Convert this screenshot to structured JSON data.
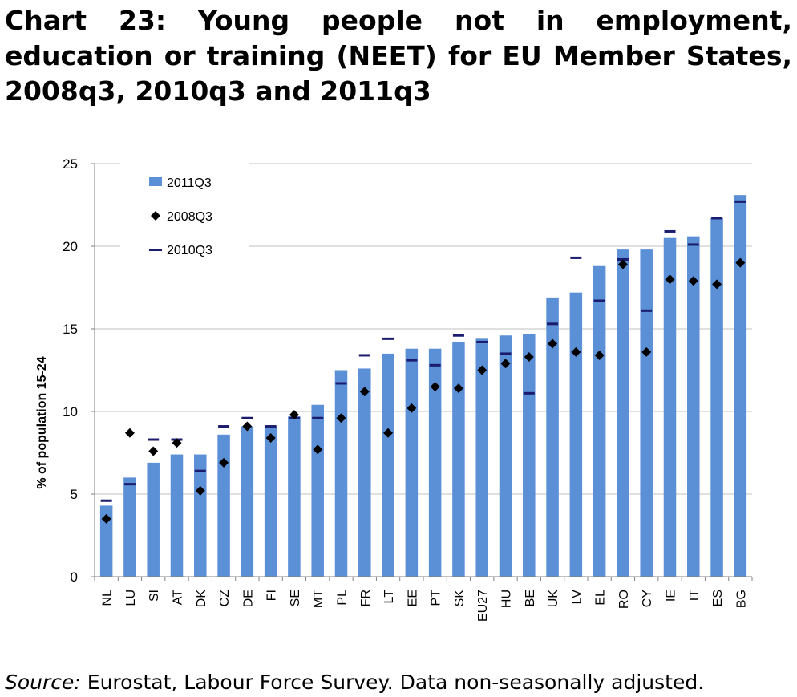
{
  "title": "Chart 23: Young people not in employment, education or training (NEET) for EU Member States, 2008q3, 2010q3 and 2011q3",
  "source": {
    "label": "Source:",
    "text": " Eurostat, Labour Force Survey. Data non-seasonally adjusted."
  },
  "colors": {
    "bar": "#5b8fd6",
    "diamond": "#000000",
    "dash": "#1c1c6e",
    "grid": "#c0c0c0"
  },
  "chart_data": {
    "type": "bar",
    "ylabel": "% of population 15-24",
    "ylim": [
      0,
      25
    ],
    "yticks": [
      0,
      5,
      10,
      15,
      20,
      25
    ],
    "grid": true,
    "legend_position": "top-left",
    "categories": [
      "NL",
      "LU",
      "SI",
      "AT",
      "DK",
      "CZ",
      "DE",
      "FI",
      "SE",
      "MT",
      "PL",
      "FR",
      "LT",
      "EE",
      "PT",
      "SK",
      "EU27",
      "HU",
      "BE",
      "UK",
      "LV",
      "EL",
      "RO",
      "CY",
      "IE",
      "IT",
      "ES",
      "BG"
    ],
    "series": [
      {
        "name": "2011Q3",
        "type": "bar",
        "values": [
          4.3,
          6.0,
          6.9,
          7.4,
          7.4,
          8.6,
          9.1,
          9.1,
          9.7,
          10.4,
          12.5,
          12.6,
          13.5,
          13.8,
          13.8,
          14.2,
          14.4,
          14.6,
          14.7,
          16.9,
          17.2,
          18.8,
          19.8,
          19.8,
          20.5,
          20.6,
          21.7,
          23.1
        ]
      },
      {
        "name": "2008Q3",
        "type": "marker-diamond",
        "values": [
          3.5,
          8.7,
          7.6,
          8.1,
          5.2,
          6.9,
          9.1,
          8.4,
          9.8,
          7.7,
          9.6,
          11.2,
          8.7,
          10.2,
          11.5,
          11.4,
          12.5,
          12.9,
          13.3,
          14.1,
          13.6,
          13.4,
          18.9,
          13.6,
          18.0,
          17.9,
          17.7,
          19.0
        ]
      },
      {
        "name": "2010Q3",
        "type": "marker-dash",
        "values": [
          4.6,
          5.6,
          8.3,
          8.3,
          6.4,
          9.1,
          9.6,
          9.1,
          9.6,
          9.6,
          11.7,
          13.4,
          14.4,
          13.1,
          12.8,
          14.6,
          14.2,
          13.5,
          11.1,
          15.3,
          19.3,
          16.7,
          19.2,
          16.1,
          20.9,
          20.1,
          21.7,
          22.7
        ]
      }
    ]
  }
}
